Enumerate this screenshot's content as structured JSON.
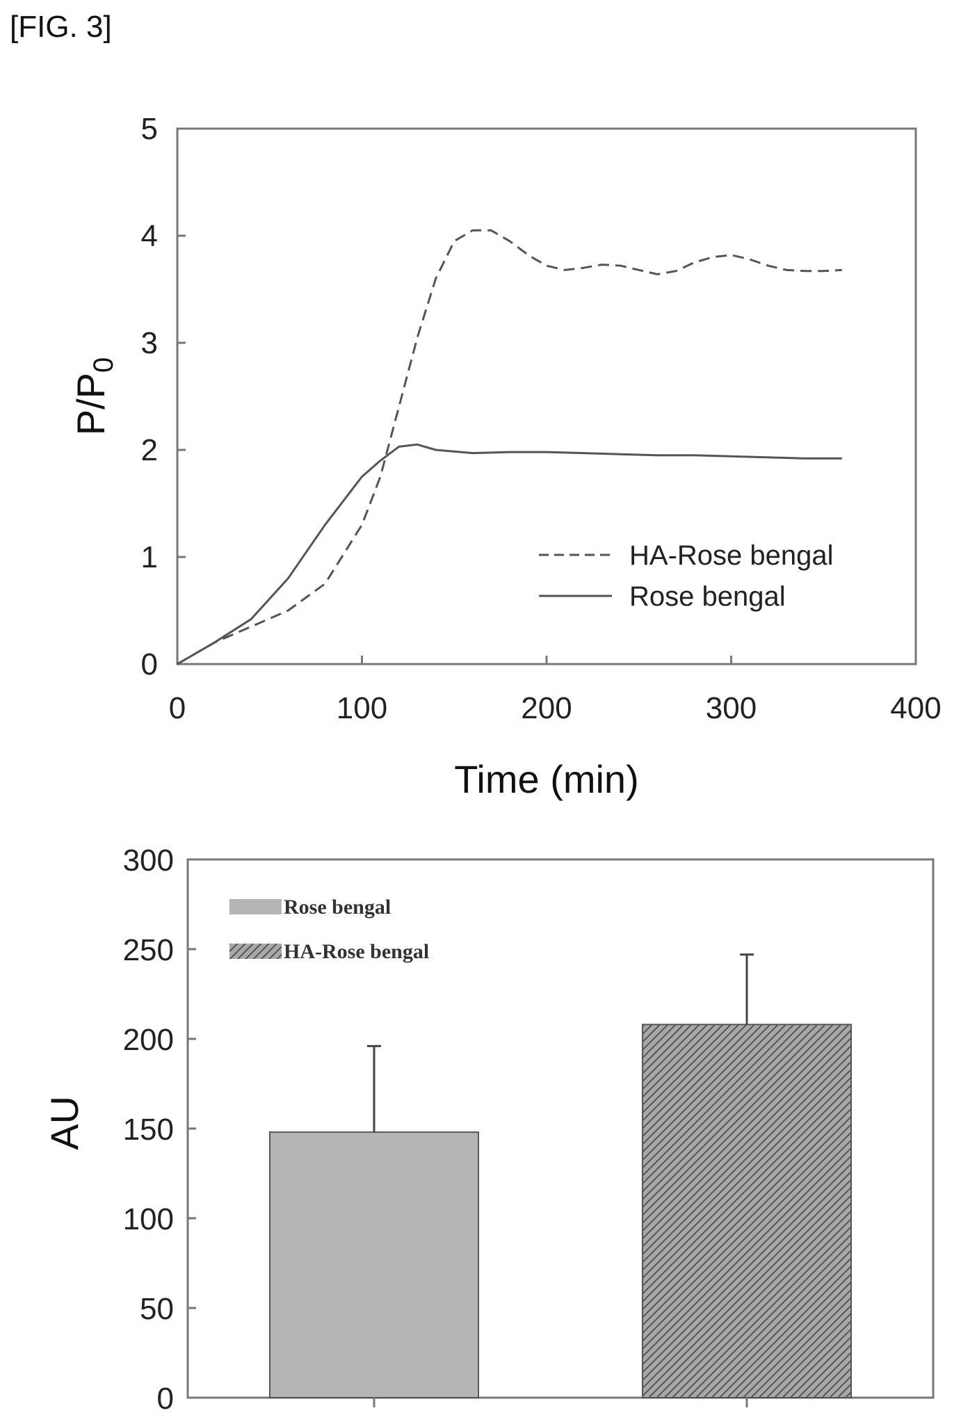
{
  "figure_label": "[FIG. 3]",
  "chart_data": [
    {
      "type": "line",
      "xlabel": "Time (min)",
      "ylabel_main": "P/P",
      "ylabel_sub": "0",
      "xlim": [
        0,
        400
      ],
      "ylim": [
        0,
        5
      ],
      "xticks": [
        "0",
        "100",
        "200",
        "300",
        "400"
      ],
      "yticks": [
        "0",
        "1",
        "2",
        "3",
        "4",
        "5"
      ],
      "legend_position": "lower-right",
      "series": [
        {
          "name": "HA-Rose bengal",
          "style": "dashed",
          "x": [
            0,
            20,
            40,
            60,
            80,
            100,
            110,
            120,
            130,
            140,
            150,
            160,
            170,
            180,
            190,
            200,
            210,
            220,
            230,
            240,
            250,
            260,
            270,
            280,
            290,
            300,
            310,
            320,
            330,
            340,
            350,
            360
          ],
          "y": [
            0,
            0.2,
            0.35,
            0.5,
            0.75,
            1.3,
            1.75,
            2.4,
            3.05,
            3.6,
            3.95,
            4.05,
            4.05,
            3.95,
            3.82,
            3.72,
            3.68,
            3.7,
            3.73,
            3.72,
            3.68,
            3.64,
            3.67,
            3.75,
            3.8,
            3.82,
            3.78,
            3.72,
            3.68,
            3.67,
            3.67,
            3.68
          ]
        },
        {
          "name": "Rose bengal",
          "style": "solid",
          "x": [
            0,
            20,
            40,
            60,
            80,
            100,
            110,
            120,
            130,
            140,
            160,
            180,
            200,
            220,
            240,
            260,
            280,
            300,
            320,
            340,
            360
          ],
          "y": [
            0,
            0.2,
            0.42,
            0.8,
            1.3,
            1.75,
            1.9,
            2.03,
            2.05,
            2.0,
            1.97,
            1.98,
            1.98,
            1.97,
            1.96,
            1.95,
            1.95,
            1.94,
            1.93,
            1.92,
            1.92
          ]
        }
      ]
    },
    {
      "type": "bar",
      "ylabel": "AU",
      "ylim": [
        0,
        300
      ],
      "yticks": [
        "0",
        "50",
        "100",
        "150",
        "200",
        "250",
        "300"
      ],
      "legend_position": "top-left",
      "categories": [
        "Rose bengal",
        "HA-Rose bengal"
      ],
      "values": [
        148,
        208
      ],
      "errors": [
        48,
        39
      ],
      "fills": [
        "#b5b5b5",
        "hatched"
      ]
    }
  ]
}
